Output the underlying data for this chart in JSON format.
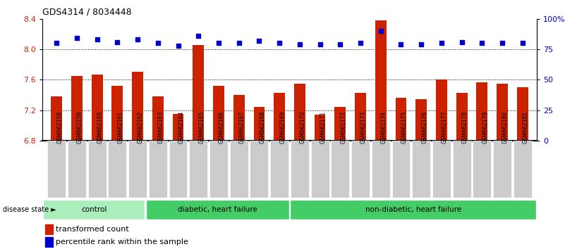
{
  "title": "GDS4314 / 8034448",
  "samples": [
    "GSM662158",
    "GSM662159",
    "GSM662160",
    "GSM662161",
    "GSM662162",
    "GSM662163",
    "GSM662164",
    "GSM662165",
    "GSM662166",
    "GSM662167",
    "GSM662168",
    "GSM662169",
    "GSM662170",
    "GSM662171",
    "GSM662172",
    "GSM662173",
    "GSM662174",
    "GSM662175",
    "GSM662176",
    "GSM662177",
    "GSM662178",
    "GSM662179",
    "GSM662180",
    "GSM662181"
  ],
  "bar_values": [
    7.38,
    7.65,
    7.67,
    7.52,
    7.7,
    7.38,
    7.15,
    8.05,
    7.52,
    7.4,
    7.24,
    7.43,
    7.55,
    7.14,
    7.24,
    7.43,
    8.38,
    7.36,
    7.34,
    7.6,
    7.43,
    7.57,
    7.55,
    7.5
  ],
  "dot_values": [
    80,
    84,
    83,
    81,
    83,
    80,
    78,
    86,
    80,
    80,
    82,
    80,
    79,
    79,
    79,
    80,
    90,
    79,
    79,
    80,
    81,
    80,
    80,
    80
  ],
  "group_configs": [
    {
      "start": 0,
      "end": 5,
      "color": "#aaeebb",
      "label": "control"
    },
    {
      "start": 5,
      "end": 12,
      "color": "#44cc66",
      "label": "diabetic, heart failure"
    },
    {
      "start": 12,
      "end": 24,
      "color": "#44cc66",
      "label": "non-diabetic, heart failure"
    }
  ],
  "bar_color": "#cc2200",
  "dot_color": "#0000cc",
  "ylim_left": [
    6.8,
    8.4
  ],
  "ylim_right": [
    0,
    100
  ],
  "yticks_left": [
    6.8,
    7.2,
    7.6,
    8.0,
    8.4
  ],
  "yticks_right": [
    0,
    25,
    50,
    75,
    100
  ],
  "ytick_labels_right": [
    "0",
    "25",
    "50",
    "75",
    "100%"
  ],
  "grid_values": [
    7.2,
    7.6,
    8.0
  ],
  "bg_color": "#ffffff",
  "tick_label_bg": "#cccccc"
}
